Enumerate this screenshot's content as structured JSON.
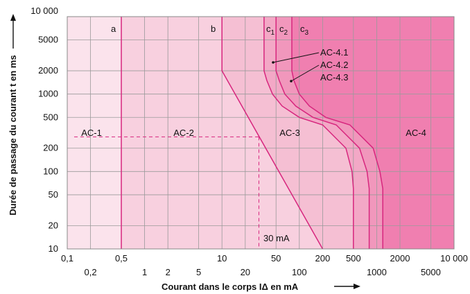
{
  "chart_data": {
    "type": "area",
    "title": "",
    "xlabel": "Courant dans le corps IΔ en mA",
    "ylabel": "Durée de passage du courant t en ms",
    "x_scale": "log",
    "y_scale": "log",
    "xlim": [
      0.1,
      10000
    ],
    "ylim": [
      10,
      10000
    ],
    "x_tick_labels_top": [
      "0,1",
      "0,5",
      "10",
      "50",
      "200",
      "500",
      "2000",
      "10 000"
    ],
    "x_tick_labels_bottom": [
      "0,2",
      "1",
      "2",
      "5",
      "20",
      "100",
      "1000",
      "5000"
    ],
    "y_tick_labels": [
      "10",
      "20",
      "50",
      "100",
      "200",
      "500",
      "1000",
      "2000",
      "5000",
      "10 000"
    ],
    "zones": [
      {
        "name": "AC-1",
        "color": "#fbe3ec"
      },
      {
        "name": "AC-2",
        "color": "#f8d0df"
      },
      {
        "name": "AC-3",
        "color": "#f5bfd3"
      },
      {
        "name": "AC-4",
        "color": "#f07fb0"
      }
    ],
    "band_colors": [
      "#f3a8c6",
      "#f197bc"
    ],
    "curve_labels": {
      "a": "a",
      "b": "b",
      "c1": "c",
      "c1_sub": "1",
      "c2": "c",
      "c2_sub": "2",
      "c3": "c",
      "c3_sub": "3"
    },
    "curve_annotations": [
      "AC-4.1",
      "AC-4.2",
      "AC-4.3"
    ],
    "curves": {
      "a": {
        "x": [
          0.5,
          0.5
        ],
        "y": [
          10,
          10000
        ]
      },
      "b": {
        "x": [
          10,
          10,
          200
        ],
        "y": [
          10000,
          2000,
          10
        ]
      },
      "c1": {
        "x": [
          35,
          35,
          38,
          45,
          60,
          100,
          200,
          400,
          480,
          500,
          500
        ],
        "y": [
          10000,
          2000,
          1500,
          1000,
          700,
          500,
          400,
          200,
          100,
          60,
          10
        ]
      },
      "c2": {
        "x": [
          50,
          50,
          55,
          65,
          90,
          150,
          300,
          600,
          750,
          800,
          800
        ],
        "y": [
          10000,
          2000,
          1500,
          1000,
          700,
          500,
          400,
          200,
          100,
          60,
          10
        ]
      },
      "c3": {
        "x": [
          80,
          80,
          85,
          100,
          135,
          220,
          450,
          900,
          1100,
          1200,
          1200
        ],
        "y": [
          10000,
          2000,
          1500,
          1000,
          700,
          500,
          400,
          200,
          100,
          60,
          10
        ]
      }
    },
    "reference": {
      "label": "30 mA",
      "x": 30,
      "y": 280
    }
  }
}
